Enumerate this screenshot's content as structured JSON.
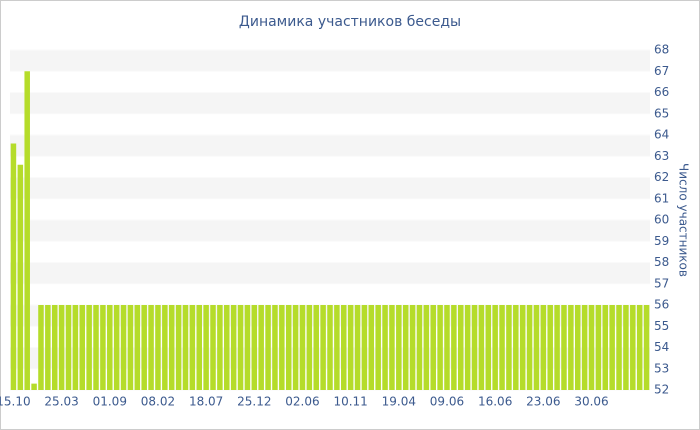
{
  "chart_data": {
    "type": "bar",
    "title": "Динамика участников беседы",
    "y_label": "Число участников",
    "categories": [
      "15.10",
      null,
      null,
      null,
      null,
      null,
      null,
      "25.03",
      null,
      null,
      null,
      null,
      null,
      null,
      "01.09",
      null,
      null,
      null,
      null,
      null,
      null,
      "08.02",
      null,
      null,
      null,
      null,
      null,
      null,
      "18.07",
      null,
      null,
      null,
      null,
      null,
      null,
      "25.12",
      null,
      null,
      null,
      null,
      null,
      null,
      "02.06",
      null,
      null,
      null,
      null,
      null,
      null,
      "10.11",
      null,
      null,
      null,
      null,
      null,
      null,
      "19.04",
      null,
      null,
      null,
      null,
      null,
      null,
      "09.06",
      null,
      null,
      null,
      null,
      null,
      null,
      "16.06",
      null,
      null,
      null,
      null,
      null,
      null,
      "23.06",
      null,
      null,
      null,
      null,
      null,
      null,
      "30.06",
      null,
      null,
      null,
      null,
      null,
      null,
      null,
      null
    ],
    "values": [
      63.6,
      62.6,
      67,
      52.3,
      56,
      56,
      56,
      56,
      56,
      56,
      56,
      56,
      56,
      56,
      56,
      56,
      56,
      56,
      56,
      56,
      56,
      56,
      56,
      56,
      56,
      56,
      56,
      56,
      56,
      56,
      56,
      56,
      56,
      56,
      56,
      56,
      56,
      56,
      56,
      56,
      56,
      56,
      56,
      56,
      56,
      56,
      56,
      56,
      56,
      56,
      56,
      56,
      56,
      56,
      56,
      56,
      56,
      56,
      56,
      56,
      56,
      56,
      56,
      56,
      56,
      56,
      56,
      56,
      56,
      56,
      56,
      56,
      56,
      56,
      56,
      56,
      56,
      56,
      56,
      56,
      56,
      56,
      56,
      56,
      56,
      56,
      56,
      56,
      56,
      56,
      56,
      56,
      56
    ],
    "color": "#b5dc2a",
    "ylim": [
      52,
      68
    ],
    "yticks": [
      52,
      53,
      54,
      55,
      56,
      57,
      58,
      59,
      60,
      61,
      62,
      63,
      64,
      65,
      66,
      67,
      68
    ],
    "grid": true
  }
}
